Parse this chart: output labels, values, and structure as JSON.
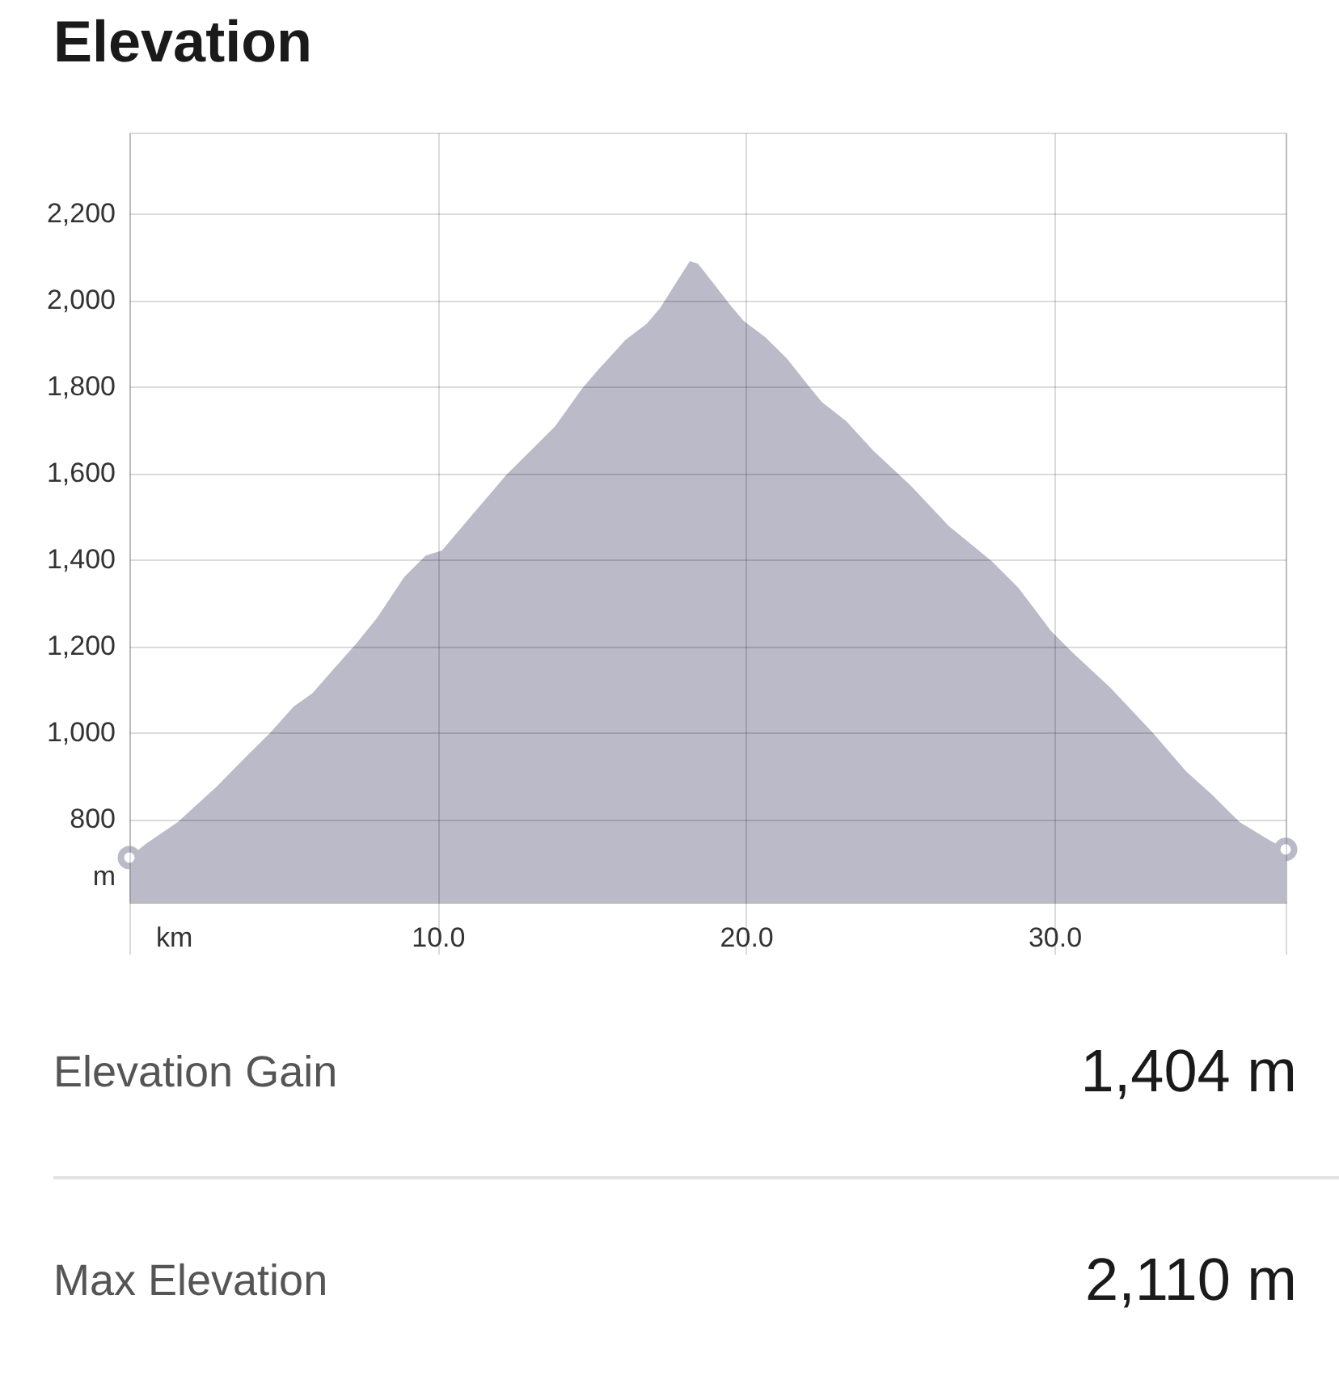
{
  "chart_data": {
    "type": "area",
    "title": "Elevation",
    "xlabel": "km",
    "ylabel": "m",
    "xlim": [
      0,
      37.5
    ],
    "ylim": [
      608,
      2387
    ],
    "xticks": [
      {
        "value": 0,
        "label": null
      },
      {
        "value": 10,
        "label": "10.0"
      },
      {
        "value": 20,
        "label": "20.0"
      },
      {
        "value": 30,
        "label": "30.0"
      },
      {
        "value": 37.5,
        "label": null
      }
    ],
    "yticks": [
      800,
      {
        "value": 1000,
        "label": "1,000"
      },
      {
        "value": 1200,
        "label": "1,200"
      },
      {
        "value": 1400,
        "label": "1,400"
      },
      {
        "value": 1600,
        "label": "1,600"
      },
      {
        "value": 1800,
        "label": "1,800"
      },
      {
        "value": 2000,
        "label": "2,000"
      },
      {
        "value": 2200,
        "label": "2,200"
      }
    ],
    "grid": true,
    "series": [
      {
        "color": "#babac8",
        "x": [
          0,
          0.52,
          1.57,
          2.8,
          3.84,
          4.55,
          5.33,
          5.94,
          6.64,
          7.34,
          8.04,
          8.91,
          9.61,
          10.14,
          11.19,
          12.23,
          13.11,
          13.81,
          14.68,
          15.21,
          16.08,
          16.78,
          17.22,
          17.66,
          18.18,
          18.44,
          18.88,
          19.49,
          19.93,
          20.62,
          21.33,
          22.02,
          22.46,
          23.25,
          24.12,
          25.34,
          26.57,
          27.97,
          28.84,
          29.89,
          30.59,
          31.81,
          33.21,
          34.26,
          35.13,
          36.01,
          36.88,
          37.5
        ],
        "values": [
          711,
          742,
          793,
          873,
          948,
          998,
          1060,
          1091,
          1148,
          1204,
          1266,
          1359,
          1409,
          1421,
          1509,
          1596,
          1658,
          1708,
          1795,
          1839,
          1907,
          1945,
          1982,
          2032,
          2090,
          2084,
          2044,
          1988,
          1951,
          1914,
          1864,
          1802,
          1764,
          1720,
          1652,
          1571,
          1478,
          1396,
          1334,
          1235,
          1185,
          1104,
          998,
          911,
          855,
          793,
          755,
          730
        ]
      },
      {
        "type": "scatter",
        "color": "#babac8",
        "marker": "circle",
        "x": [
          0,
          37.5
        ],
        "values": [
          711,
          730
        ]
      }
    ],
    "annotations": [
      "Elevation Gain",
      "1,404 m",
      "Max Elevation",
      "2,110 m"
    ]
  }
}
